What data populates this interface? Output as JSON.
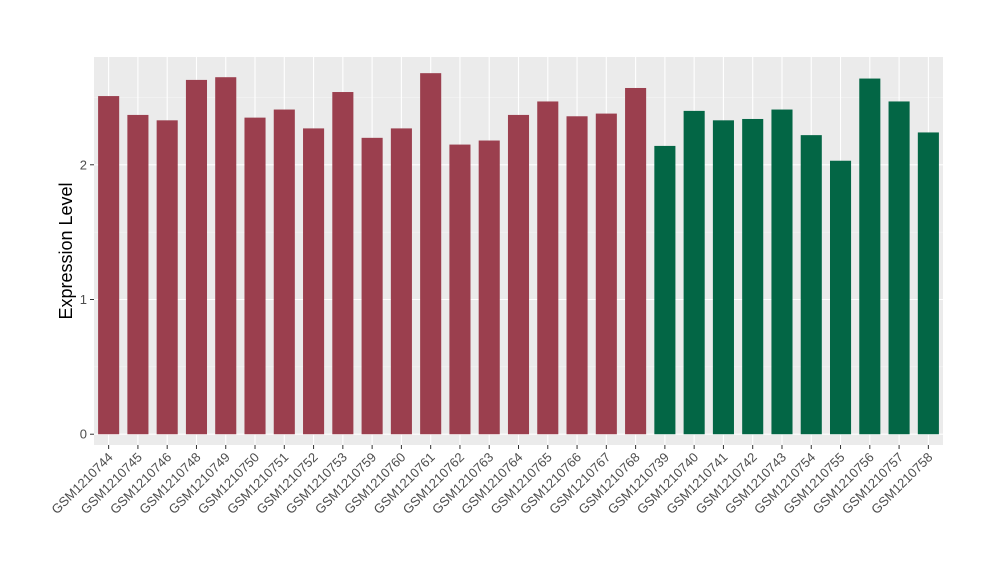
{
  "chart_data": {
    "type": "bar",
    "ylabel": "Expression Level",
    "xlabel": "",
    "ylim": [
      -0.08,
      2.8
    ],
    "yticks": [
      0,
      1,
      2
    ],
    "grid": true,
    "legend": "none",
    "panel_background": "#EBEBEB",
    "group_colors": {
      "group1": "#9B3F4E",
      "group2": "#036645"
    },
    "categories": [
      "GSM1210744",
      "GSM1210745",
      "GSM1210746",
      "GSM1210748",
      "GSM1210749",
      "GSM1210750",
      "GSM1210751",
      "GSM1210752",
      "GSM1210753",
      "GSM1210759",
      "GSM1210760",
      "GSM1210761",
      "GSM1210762",
      "GSM1210763",
      "GSM1210764",
      "GSM1210765",
      "GSM1210766",
      "GSM1210767",
      "GSM1210768",
      "GSM1210739",
      "GSM1210740",
      "GSM1210741",
      "GSM1210742",
      "GSM1210743",
      "GSM1210754",
      "GSM1210755",
      "GSM1210756",
      "GSM1210757",
      "GSM1210758"
    ],
    "values": [
      2.51,
      2.37,
      2.33,
      2.63,
      2.65,
      2.35,
      2.41,
      2.27,
      2.54,
      2.2,
      2.27,
      2.68,
      2.15,
      2.18,
      2.37,
      2.47,
      2.36,
      2.38,
      2.57,
      2.14,
      2.4,
      2.33,
      2.34,
      2.41,
      2.22,
      2.03,
      2.64,
      2.47,
      2.24
    ],
    "groups": [
      "group1",
      "group1",
      "group1",
      "group1",
      "group1",
      "group1",
      "group1",
      "group1",
      "group1",
      "group1",
      "group1",
      "group1",
      "group1",
      "group1",
      "group1",
      "group1",
      "group1",
      "group1",
      "group1",
      "group2",
      "group2",
      "group2",
      "group2",
      "group2",
      "group2",
      "group2",
      "group2",
      "group2",
      "group2"
    ]
  }
}
